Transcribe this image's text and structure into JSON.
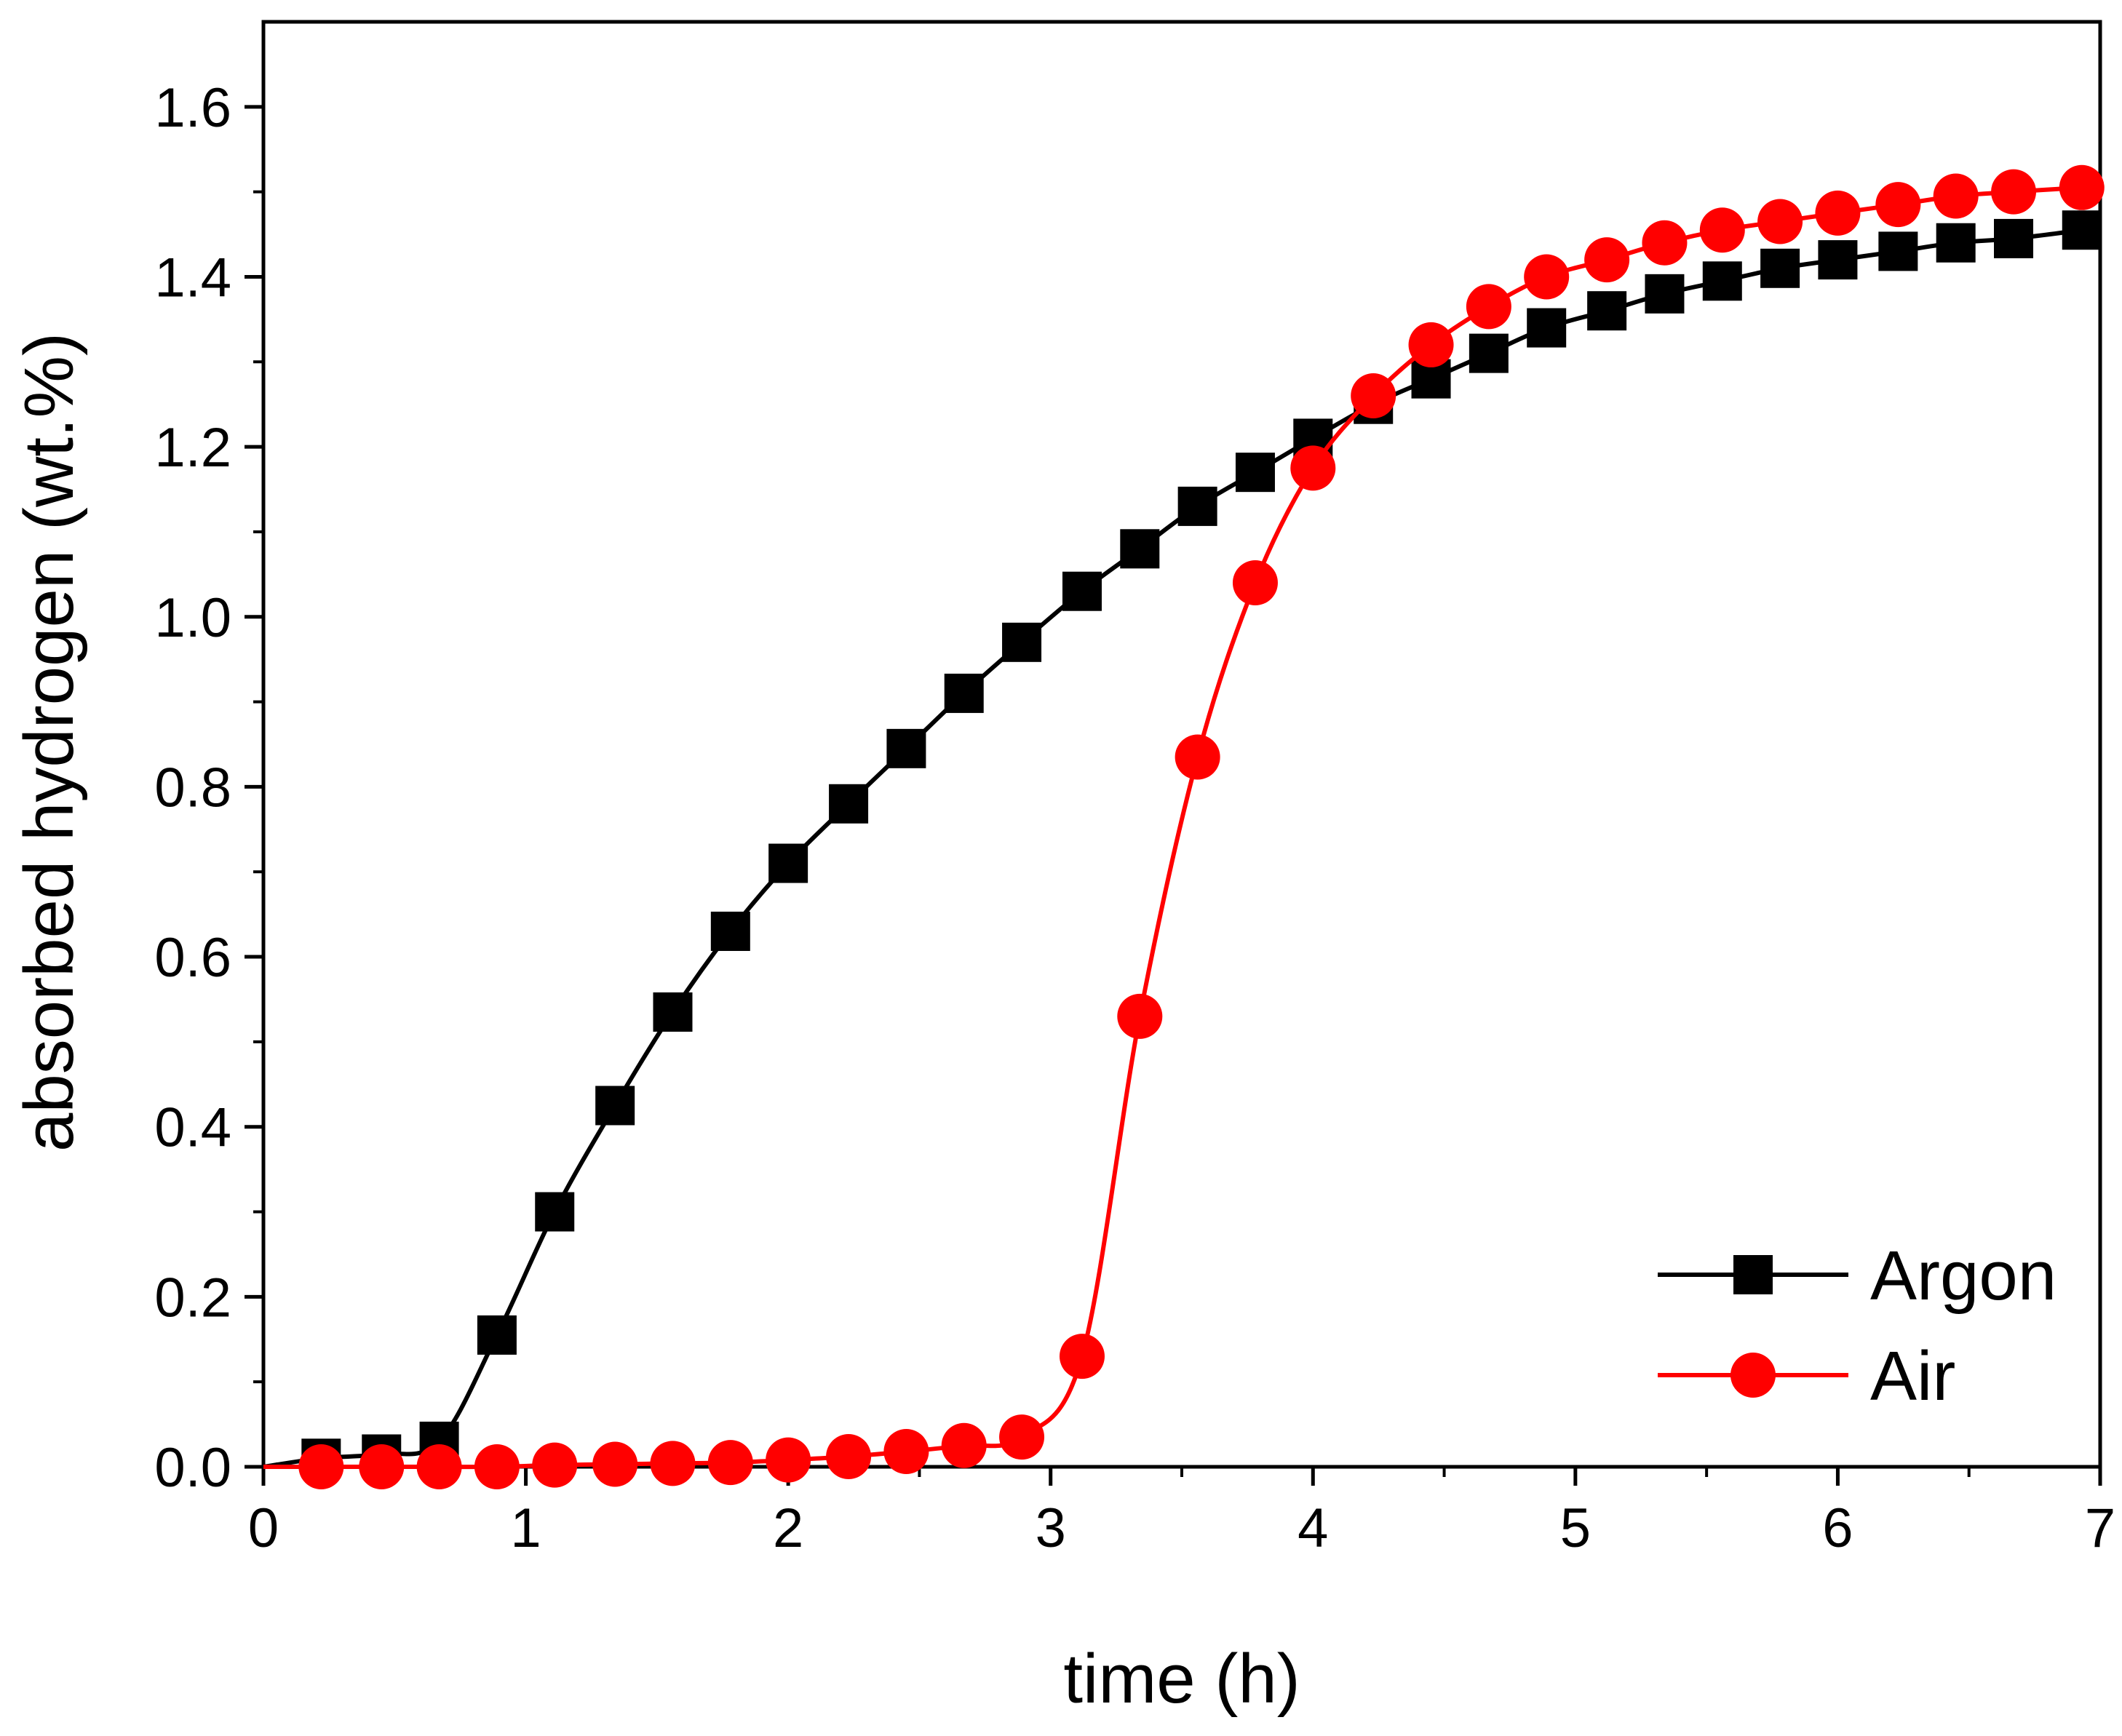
{
  "chart_data": {
    "type": "line",
    "title": "",
    "xlabel": "time (h)",
    "ylabel": "absorbed hydrogen (wt.%)",
    "xlim": [
      0,
      7
    ],
    "ylim": [
      0,
      1.7
    ],
    "xticks": [
      0,
      1,
      2,
      3,
      4,
      5,
      6,
      7
    ],
    "xtick_labels": [
      "0",
      "1",
      "2",
      "3",
      "4",
      "5",
      "6",
      "7"
    ],
    "yticks": [
      0.0,
      0.2,
      0.4,
      0.6,
      0.8,
      1.0,
      1.2,
      1.4,
      1.6
    ],
    "ytick_labels": [
      "0.0",
      "0.2",
      "0.4",
      "0.6",
      "0.8",
      "1.0",
      "1.2",
      "1.4",
      "1.6"
    ],
    "grid": false,
    "legend_position": "bottom-right",
    "series": [
      {
        "name": "Argon",
        "color": "#000000",
        "marker": "square",
        "x": [
          0.22,
          0.45,
          0.67,
          0.89,
          1.11,
          1.34,
          1.56,
          1.78,
          2.0,
          2.23,
          2.45,
          2.67,
          2.89,
          3.12,
          3.34,
          3.56,
          3.78,
          4.0,
          4.23,
          4.45,
          4.67,
          4.89,
          5.12,
          5.34,
          5.56,
          5.78,
          6.0,
          6.23,
          6.45,
          6.67,
          6.93
        ],
        "y": [
          0.01,
          0.015,
          0.03,
          0.155,
          0.3,
          0.425,
          0.535,
          0.63,
          0.71,
          0.78,
          0.845,
          0.91,
          0.97,
          1.03,
          1.08,
          1.13,
          1.17,
          1.21,
          1.25,
          1.28,
          1.31,
          1.34,
          1.36,
          1.38,
          1.395,
          1.41,
          1.42,
          1.43,
          1.44,
          1.445,
          1.455
        ]
      },
      {
        "name": "Air",
        "color": "#ff0000",
        "marker": "circle",
        "x": [
          0.22,
          0.45,
          0.67,
          0.89,
          1.11,
          1.34,
          1.56,
          1.78,
          2.0,
          2.23,
          2.45,
          2.67,
          2.89,
          3.12,
          3.34,
          3.56,
          3.78,
          4.0,
          4.23,
          4.45,
          4.67,
          4.89,
          5.12,
          5.34,
          5.56,
          5.78,
          6.0,
          6.23,
          6.45,
          6.67,
          6.93
        ],
        "y": [
          0.0,
          0.0,
          0.0,
          0.0,
          0.002,
          0.003,
          0.004,
          0.005,
          0.008,
          0.012,
          0.018,
          0.025,
          0.035,
          0.13,
          0.53,
          0.835,
          1.04,
          1.175,
          1.26,
          1.32,
          1.365,
          1.4,
          1.42,
          1.44,
          1.455,
          1.465,
          1.475,
          1.485,
          1.495,
          1.5,
          1.505
        ]
      }
    ]
  }
}
